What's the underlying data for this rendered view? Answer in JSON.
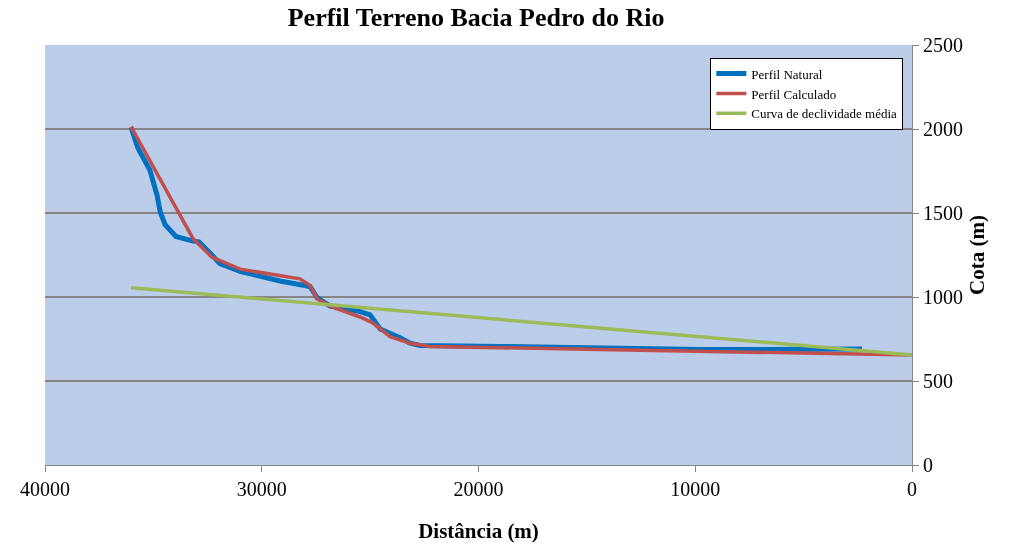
{
  "chart_data": {
    "type": "line",
    "title": "Perfil Terreno Bacia Pedro do Rio",
    "xlabel": "Distância (m)",
    "ylabel": "Cota (m)",
    "xlim": [
      40000,
      0
    ],
    "xticks": [
      40000,
      30000,
      20000,
      10000,
      0
    ],
    "ylim": [
      0,
      2500
    ],
    "yticks": [
      0,
      500,
      1000,
      1500,
      2000,
      2500
    ],
    "grid": "y",
    "legend": "top right",
    "marker": "none",
    "line_style": "solid",
    "series": [
      {
        "name": "Perfil Natural",
        "color": "#0070c0",
        "x": [
          36030,
          35710,
          35160,
          34830,
          34690,
          34460,
          33960,
          33220,
          32900,
          32300,
          31930,
          31000,
          29160,
          27770,
          27450,
          26850,
          25470,
          25000,
          24540,
          23620,
          23160,
          22700,
          19010,
          9780,
          2310
        ],
        "values": [
          2010,
          1885,
          1755,
          1606,
          1509,
          1431,
          1360,
          1334,
          1328,
          1250,
          1198,
          1153,
          1095,
          1062,
          997,
          946,
          913,
          894,
          810,
          758,
          725,
          712,
          706,
          687,
          690
        ]
      },
      {
        "name": "Perfil Calculado",
        "color": "#c0504d",
        "x": [
          36030,
          33170,
          32300,
          31000,
          28240,
          27770,
          27450,
          26850,
          25470,
          24900,
          24080,
          23160,
          22240,
          14400,
          0
        ],
        "values": [
          2014,
          1347,
          1237,
          1166,
          1108,
          1069,
          990,
          946,
          881,
          848,
          764,
          725,
          706,
          687,
          655
        ]
      },
      {
        "name": "Curva de declividade média",
        "color": "#9bbb59",
        "x": [
          36030,
          0
        ],
        "values": [
          1055,
          655
        ]
      }
    ]
  }
}
